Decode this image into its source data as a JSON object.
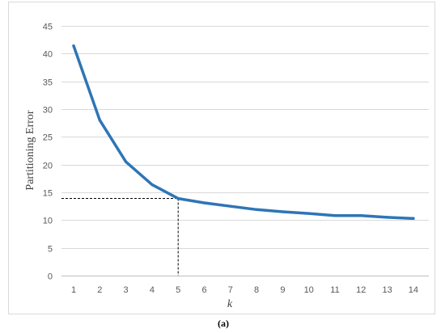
{
  "chart_data": {
    "type": "line",
    "xlabel": "k",
    "ylabel": "Partitioning Error",
    "caption": "(a)",
    "x": [
      1,
      2,
      3,
      4,
      5,
      6,
      7,
      8,
      9,
      10,
      11,
      12,
      13,
      14
    ],
    "xticks": [
      "1",
      "2",
      "3",
      "4",
      "5",
      "6",
      "7",
      "8",
      "9",
      "10",
      "11",
      "12",
      "13",
      "14"
    ],
    "yticks": [
      "0",
      "5",
      "10",
      "15",
      "20",
      "25",
      "30",
      "35",
      "40",
      "45"
    ],
    "ylim": [
      0,
      45
    ],
    "grid": true,
    "series": [
      {
        "values": [
          41.4,
          28.0,
          20.5,
          16.4,
          13.9,
          13.1,
          12.5,
          11.9,
          11.5,
          11.2,
          10.8,
          10.8,
          10.5,
          10.3
        ],
        "color": "#2e75b6"
      }
    ],
    "annotation": {
      "type": "dashed-crosshair",
      "x": 5,
      "y": 13.9,
      "color": "#000000"
    }
  }
}
